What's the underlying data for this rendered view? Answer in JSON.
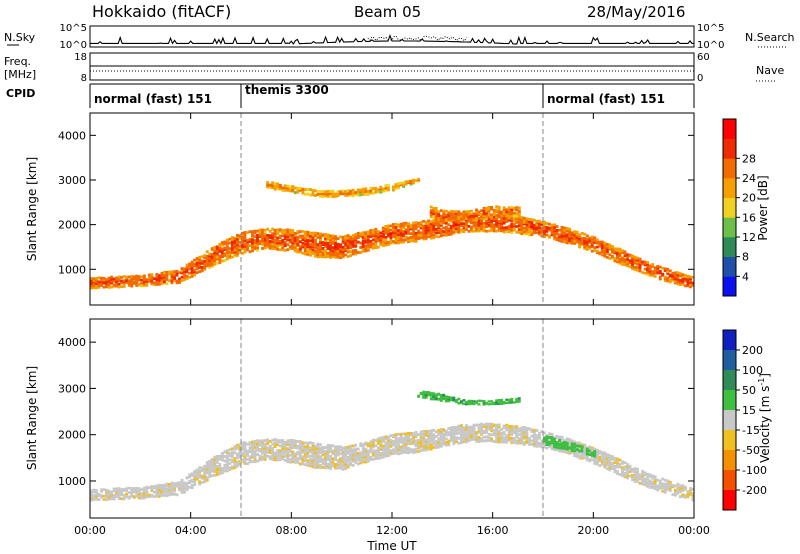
{
  "header": {
    "title": "Hokkaido (fitACF)",
    "beam": "Beam 05",
    "date": "28/May/2016"
  },
  "strip": {
    "nsky_label": "N.Sky",
    "nsearch_label": "N.Search",
    "noise_ticks_left": [
      "10^5",
      "10^0"
    ],
    "noise_ticks_right": [
      "10^5",
      "10^0"
    ],
    "freq_label_top": "Freq.",
    "freq_label_unit": "[MHz]",
    "freq_ticks": [
      "18",
      "8"
    ],
    "nave_label": "Nave",
    "nave_ticks": [
      "60",
      "0"
    ],
    "cpid_label": "CPID",
    "cpid_segments": [
      {
        "label": "normal (fast) 151",
        "start_hour": 0,
        "end_hour": 6
      },
      {
        "label": "themis 3300",
        "start_hour": 6,
        "end_hour": 18
      },
      {
        "label": "normal (fast) 151",
        "start_hour": 18,
        "end_hour": 24
      }
    ]
  },
  "chart_data": [
    {
      "type": "heatmap",
      "name": "power",
      "ylabel": "Slant Range [km]",
      "xlabel": "",
      "xlim": [
        0,
        24
      ],
      "ylim": [
        200,
        4500
      ],
      "yticks": [
        "1000",
        "2000",
        "3000",
        "4000"
      ],
      "colorbar_label": "Power [dB]",
      "colorbar_ticks": [
        "4",
        "8",
        "12",
        "16",
        "20",
        "24",
        "28"
      ],
      "colorbar_colors": [
        "#0a10f0",
        "#1f4fa8",
        "#2e8b57",
        "#6cc04a",
        "#f0d020",
        "#f5a000",
        "#f36a00",
        "#ef2a00",
        "#ff0000"
      ],
      "echo_bands": [
        {
          "x": [
            0,
            2,
            3.5,
            5,
            6,
            7,
            8,
            9,
            10,
            11,
            12,
            13,
            14,
            15,
            16,
            17,
            18,
            19,
            20,
            21,
            22,
            23,
            24
          ],
          "y": [
            700,
            750,
            850,
            1350,
            1600,
            1700,
            1650,
            1550,
            1500,
            1650,
            1800,
            1850,
            1950,
            2050,
            2050,
            2000,
            1900,
            1750,
            1550,
            1300,
            1050,
            850,
            700
          ],
          "width": [
            250,
            250,
            300,
            450,
            500,
            450,
            500,
            550,
            500,
            450,
            450,
            450,
            400,
            400,
            400,
            400,
            350,
            350,
            350,
            350,
            300,
            300,
            250
          ],
          "strength": 26
        },
        {
          "x": [
            7,
            8,
            9,
            10,
            11,
            12,
            13
          ],
          "y": [
            2900,
            2800,
            2700,
            2700,
            2750,
            2850,
            3000
          ],
          "width": [
            150,
            150,
            150,
            150,
            150,
            150,
            100
          ],
          "strength": 22
        },
        {
          "x": [
            13.5,
            14,
            15,
            16,
            17
          ],
          "y": [
            2300,
            2200,
            2200,
            2300,
            2300
          ],
          "width": [
            250,
            250,
            250,
            250,
            200
          ],
          "strength": 25
        }
      ]
    },
    {
      "type": "heatmap",
      "name": "velocity",
      "ylabel": "Slant Range [km]",
      "xlabel": "Time UT",
      "xlim": [
        0,
        24
      ],
      "ylim": [
        200,
        4500
      ],
      "xticks": [
        "00:00",
        "04:00",
        "08:00",
        "12:00",
        "16:00",
        "20:00",
        "00:00"
      ],
      "yticks": [
        "1000",
        "2000",
        "3000",
        "4000"
      ],
      "colorbar_label": "Velocity [m s^-1]",
      "colorbar_ticks": [
        "200",
        "100",
        "50",
        "15",
        "-15",
        "-50",
        "-100",
        "-200"
      ],
      "colorbar_colors": [
        "#1020c0",
        "#1f5fa0",
        "#2f8b57",
        "#3fbf3f",
        "#c8c8c8",
        "#f0c020",
        "#f59000",
        "#f55000",
        "#ff0000"
      ],
      "echo_bands": [
        {
          "x": [
            0,
            2,
            3.5,
            5,
            6,
            7,
            8,
            9,
            10,
            11,
            12,
            13,
            14,
            15,
            16,
            17,
            18,
            19,
            20,
            21,
            22,
            23,
            24
          ],
          "y": [
            700,
            750,
            850,
            1350,
            1600,
            1700,
            1650,
            1550,
            1500,
            1650,
            1800,
            1850,
            1950,
            2050,
            2050,
            2000,
            1900,
            1750,
            1550,
            1300,
            1050,
            850,
            700
          ],
          "width": [
            250,
            250,
            300,
            450,
            500,
            450,
            500,
            550,
            500,
            450,
            450,
            450,
            400,
            400,
            400,
            400,
            350,
            350,
            350,
            350,
            300,
            300,
            250
          ],
          "velocity": -5
        },
        {
          "x": [
            13,
            14,
            15,
            16,
            17
          ],
          "y": [
            2900,
            2800,
            2700,
            2700,
            2750
          ],
          "width": [
            150,
            150,
            100,
            100,
            100
          ],
          "velocity": 40
        },
        {
          "x": [
            18,
            19,
            20
          ],
          "y": [
            1900,
            1750,
            1600
          ],
          "width": [
            200,
            200,
            150
          ],
          "velocity": 25
        }
      ]
    }
  ]
}
